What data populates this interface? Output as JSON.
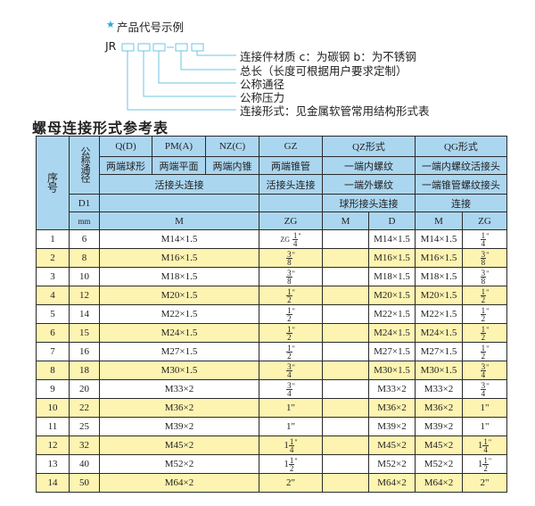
{
  "code_example": {
    "heading": "产品代号示例",
    "prefix": "JR",
    "separator": "-",
    "legend": [
      "连接件材质    c：为碳钢   b：为不锈钢",
      "总长（长度可根据用户要求定制）",
      "公称通径",
      "公称压力",
      "连接形式：见金属软管常用结构形式表"
    ],
    "accent_color": "#2aa9d6"
  },
  "table_title": "螺母连接形式参考表",
  "table": {
    "header": {
      "seq": "序号",
      "nominal": "公称通径",
      "q": "Q(D)",
      "pm": "PM(A)",
      "nz": "NZ(C)",
      "gz": "GZ",
      "qz": "QZ形式",
      "qg": "QG形式",
      "q2": "两端球形",
      "pm2": "两端平面",
      "nz2": "两端内锥",
      "gz2": "两端锥管",
      "qz2": "一端内螺纹",
      "qg2": "一端内螺纹活接头",
      "d1": "D1",
      "union": "活接头连接",
      "gz3": "活接头连接",
      "qz3": "一端外螺纹",
      "qg3": "一端锥管螺纹接头",
      "qz4": "球形接头连接",
      "qg4": "连接",
      "mm": "mm",
      "m": "M",
      "zg": "ZG",
      "qz_m": "M",
      "qz_d": "D",
      "qg_m": "M",
      "qg_zg": "ZG"
    },
    "rows": [
      {
        "no": "1",
        "d": "6",
        "m": "M14×1.5",
        "zg": {
          "pre": "ZG",
          "whole": "",
          "num": "1",
          "den": "4",
          "unit": "\""
        },
        "qz_m": "",
        "qz_d": "M14×1.5",
        "qg_m": "M14×1.5",
        "qg_zg": {
          "whole": "",
          "num": "1",
          "den": "4",
          "unit": "\""
        }
      },
      {
        "no": "2",
        "d": "8",
        "m": "M16×1.5",
        "zg": {
          "whole": "",
          "num": "3",
          "den": "8",
          "unit": "\""
        },
        "qz_m": "",
        "qz_d": "M16×1.5",
        "qg_m": "M16×1.5",
        "qg_zg": {
          "whole": "",
          "num": "3",
          "den": "8",
          "unit": "\""
        }
      },
      {
        "no": "3",
        "d": "10",
        "m": "M18×1.5",
        "zg": {
          "whole": "",
          "num": "3",
          "den": "8",
          "unit": "\""
        },
        "qz_m": "",
        "qz_d": "M18×1.5",
        "qg_m": "M18×1.5",
        "qg_zg": {
          "whole": "",
          "num": "3",
          "den": "8",
          "unit": "\""
        }
      },
      {
        "no": "4",
        "d": "12",
        "m": "M20×1.5",
        "zg": {
          "whole": "",
          "num": "1",
          "den": "2",
          "unit": "\""
        },
        "qz_m": "",
        "qz_d": "M20×1.5",
        "qg_m": "M20×1.5",
        "qg_zg": {
          "whole": "",
          "num": "1",
          "den": "2",
          "unit": "\""
        }
      },
      {
        "no": "5",
        "d": "14",
        "m": "M22×1.5",
        "zg": {
          "whole": "",
          "num": "1",
          "den": "2",
          "unit": "\""
        },
        "qz_m": "",
        "qz_d": "M22×1.5",
        "qg_m": "M22×1.5",
        "qg_zg": {
          "whole": "",
          "num": "1",
          "den": "2",
          "unit": "\""
        }
      },
      {
        "no": "6",
        "d": "15",
        "m": "M24×1.5",
        "zg": {
          "whole": "",
          "num": "1",
          "den": "2",
          "unit": "\""
        },
        "qz_m": "",
        "qz_d": "M24×1.5",
        "qg_m": "M24×1.5",
        "qg_zg": {
          "whole": "",
          "num": "1",
          "den": "2",
          "unit": "\""
        }
      },
      {
        "no": "7",
        "d": "16",
        "m": "M27×1.5",
        "zg": {
          "whole": "",
          "num": "1",
          "den": "2",
          "unit": "\""
        },
        "qz_m": "",
        "qz_d": "M27×1.5",
        "qg_m": "M27×1.5",
        "qg_zg": {
          "whole": "",
          "num": "1",
          "den": "2",
          "unit": "\""
        }
      },
      {
        "no": "8",
        "d": "18",
        "m": "M30×1.5",
        "zg": {
          "whole": "",
          "num": "3",
          "den": "4",
          "unit": "\""
        },
        "qz_m": "",
        "qz_d": "M30×1.5",
        "qg_m": "M30×1.5",
        "qg_zg": {
          "whole": "",
          "num": "3",
          "den": "4",
          "unit": "\""
        }
      },
      {
        "no": "9",
        "d": "20",
        "m": "M33×2",
        "zg": {
          "whole": "",
          "num": "3",
          "den": "4",
          "unit": "\""
        },
        "qz_m": "",
        "qz_d": "M33×2",
        "qg_m": "M33×2",
        "qg_zg": {
          "whole": "",
          "num": "3",
          "den": "4",
          "unit": "\""
        }
      },
      {
        "no": "10",
        "d": "22",
        "m": "M36×2",
        "zg": {
          "text": "1\""
        },
        "qz_m": "",
        "qz_d": "M36×2",
        "qg_m": "M36×2",
        "qg_zg": {
          "text": "1\""
        }
      },
      {
        "no": "11",
        "d": "25",
        "m": "M39×2",
        "zg": {
          "text": "1\""
        },
        "qz_m": "",
        "qz_d": "M39×2",
        "qg_m": "M39×2",
        "qg_zg": {
          "text": "1\""
        }
      },
      {
        "no": "12",
        "d": "32",
        "m": "M45×2",
        "zg": {
          "whole": "1",
          "num": "1",
          "den": "4",
          "unit": "\""
        },
        "qz_m": "",
        "qz_d": "M45×2",
        "qg_m": "M45×2",
        "qg_zg": {
          "whole": "1",
          "num": "1",
          "den": "4",
          "unit": "\""
        }
      },
      {
        "no": "13",
        "d": "40",
        "m": "M52×2",
        "zg": {
          "whole": "1",
          "num": "1",
          "den": "2",
          "unit": "\""
        },
        "qz_m": "",
        "qz_d": "M52×2",
        "qg_m": "M52×2",
        "qg_zg": {
          "whole": "1",
          "num": "1",
          "den": "2",
          "unit": "\""
        }
      },
      {
        "no": "14",
        "d": "50",
        "m": "M64×2",
        "zg": {
          "text": "2\""
        },
        "qz_m": "",
        "qz_d": "M64×2",
        "qg_m": "M64×2",
        "qg_zg": {
          "text": "2\""
        }
      }
    ],
    "colors": {
      "header": "#abd6f0",
      "stripe": "#fdf4b2",
      "border": "#2a2a2a"
    }
  }
}
